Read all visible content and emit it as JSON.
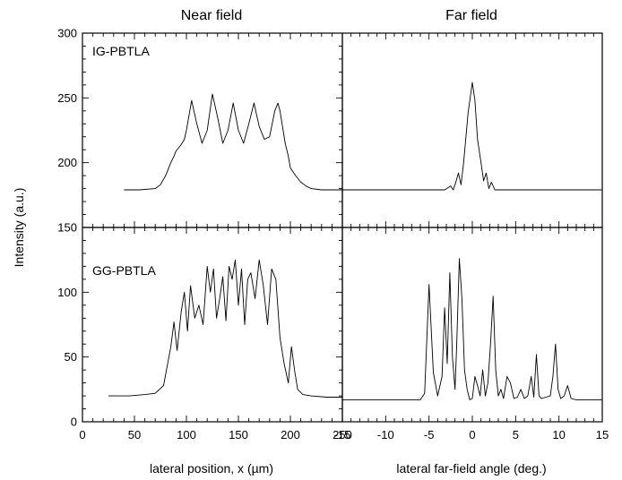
{
  "figure": {
    "col_titles": [
      "Near field",
      "Far field"
    ],
    "ylabel": "Intensity (a.u.)",
    "panel_labels": [
      "IG-PBTLA",
      "GG-PBTLA"
    ],
    "left_y_ticks": [
      "0",
      "50",
      "100",
      "150",
      "200",
      "250",
      "300"
    ],
    "left_x_ticks": [
      "0",
      "50",
      "100",
      "150",
      "200",
      "250"
    ],
    "right_x_ticks": [
      "-15",
      "-10",
      "-5",
      "0",
      "5",
      "10",
      "15"
    ],
    "left_xlabel": "lateral position, x (µm)",
    "right_xlabel": "lateral far-field angle (deg.)"
  },
  "chart_data": [
    {
      "type": "line",
      "title": "Near field",
      "label": "IG-PBTLA",
      "xlabel": "lateral position, x (µm)",
      "ylabel": "Intensity (a.u.)",
      "xlim": [
        0,
        250
      ],
      "ylim": [
        150,
        300
      ],
      "x": [
        40,
        55,
        70,
        75,
        80,
        85,
        88,
        90,
        95,
        98,
        100,
        105,
        110,
        115,
        120,
        125,
        130,
        135,
        140,
        145,
        150,
        155,
        160,
        165,
        170,
        175,
        180,
        185,
        188,
        190,
        195,
        198,
        200,
        205,
        210,
        215,
        220,
        230,
        240,
        250
      ],
      "y": [
        179,
        179,
        180,
        183,
        190,
        200,
        205,
        209,
        214,
        218,
        225,
        248,
        230,
        215,
        225,
        253,
        235,
        215,
        225,
        246,
        225,
        215,
        230,
        246,
        228,
        218,
        220,
        240,
        246,
        240,
        215,
        205,
        196,
        190,
        185,
        182,
        180,
        179,
        179,
        179
      ]
    },
    {
      "type": "line",
      "title": "Far field",
      "label": "IG-PBTLA",
      "xlabel": "lateral far-field angle (deg.)",
      "xlim": [
        -15,
        15
      ],
      "ylim": [
        150,
        300
      ],
      "x": [
        -15,
        -3.2,
        -2.5,
        -2.2,
        -1.9,
        -1.6,
        -1.3,
        -1.0,
        -0.5,
        0,
        0.3,
        0.6,
        1.0,
        1.3,
        1.6,
        1.9,
        2.2,
        2.6,
        3.5,
        15
      ],
      "y": [
        179,
        179,
        182,
        179,
        185,
        192,
        183,
        200,
        238,
        262,
        248,
        218,
        200,
        186,
        192,
        180,
        185,
        179,
        179,
        179
      ]
    },
    {
      "type": "line",
      "title": "Near field",
      "label": "GG-PBTLA",
      "xlabel": "lateral position, x (µm)",
      "ylabel": "Intensity (a.u.)",
      "xlim": [
        0,
        250
      ],
      "ylim": [
        0,
        150
      ],
      "x": [
        25,
        45,
        60,
        70,
        78,
        82,
        85,
        88,
        91,
        95,
        98,
        101,
        104,
        108,
        112,
        116,
        120,
        123,
        126,
        129,
        132,
        135,
        138,
        141,
        144,
        147,
        150,
        153,
        156,
        159,
        162,
        166,
        170,
        174,
        178,
        182,
        186,
        190,
        194,
        198,
        201,
        204,
        207,
        212,
        220,
        235,
        250
      ],
      "y": [
        20,
        20,
        21,
        22,
        28,
        45,
        58,
        77,
        55,
        85,
        100,
        70,
        105,
        80,
        90,
        75,
        120,
        100,
        118,
        80,
        95,
        112,
        78,
        120,
        110,
        125,
        90,
        118,
        75,
        110,
        115,
        95,
        125,
        105,
        75,
        118,
        110,
        65,
        45,
        30,
        58,
        40,
        25,
        21,
        20,
        19,
        19
      ]
    },
    {
      "type": "line",
      "title": "Far field",
      "label": "GG-PBTLA",
      "xlabel": "lateral far-field angle (deg.)",
      "xlim": [
        -15,
        15
      ],
      "ylim": [
        0,
        150
      ],
      "x": [
        -15,
        -7,
        -6,
        -5.5,
        -5,
        -4.5,
        -4.0,
        -3.5,
        -3.2,
        -2.9,
        -2.6,
        -2.3,
        -2.0,
        -1.8,
        -1.5,
        -1.2,
        -0.9,
        -0.6,
        -0.3,
        0,
        0.3,
        0.6,
        0.9,
        1.2,
        1.5,
        1.8,
        2.1,
        2.4,
        2.7,
        3.0,
        3.3,
        3.6,
        4.0,
        4.4,
        4.8,
        5.2,
        5.6,
        6.0,
        6.4,
        6.8,
        7.1,
        7.4,
        7.7,
        8.0,
        8.5,
        9.0,
        9.3,
        9.6,
        9.9,
        10.2,
        10.6,
        11.0,
        11.4,
        12,
        15
      ],
      "y": [
        17,
        17,
        17,
        22,
        106,
        38,
        20,
        35,
        88,
        45,
        115,
        50,
        25,
        60,
        126,
        95,
        40,
        25,
        17,
        18,
        35,
        28,
        20,
        40,
        20,
        30,
        60,
        97,
        40,
        20,
        25,
        18,
        35,
        30,
        18,
        19,
        25,
        18,
        20,
        35,
        19,
        52,
        20,
        18,
        19,
        20,
        35,
        60,
        25,
        18,
        20,
        28,
        18,
        17,
        17
      ]
    }
  ]
}
